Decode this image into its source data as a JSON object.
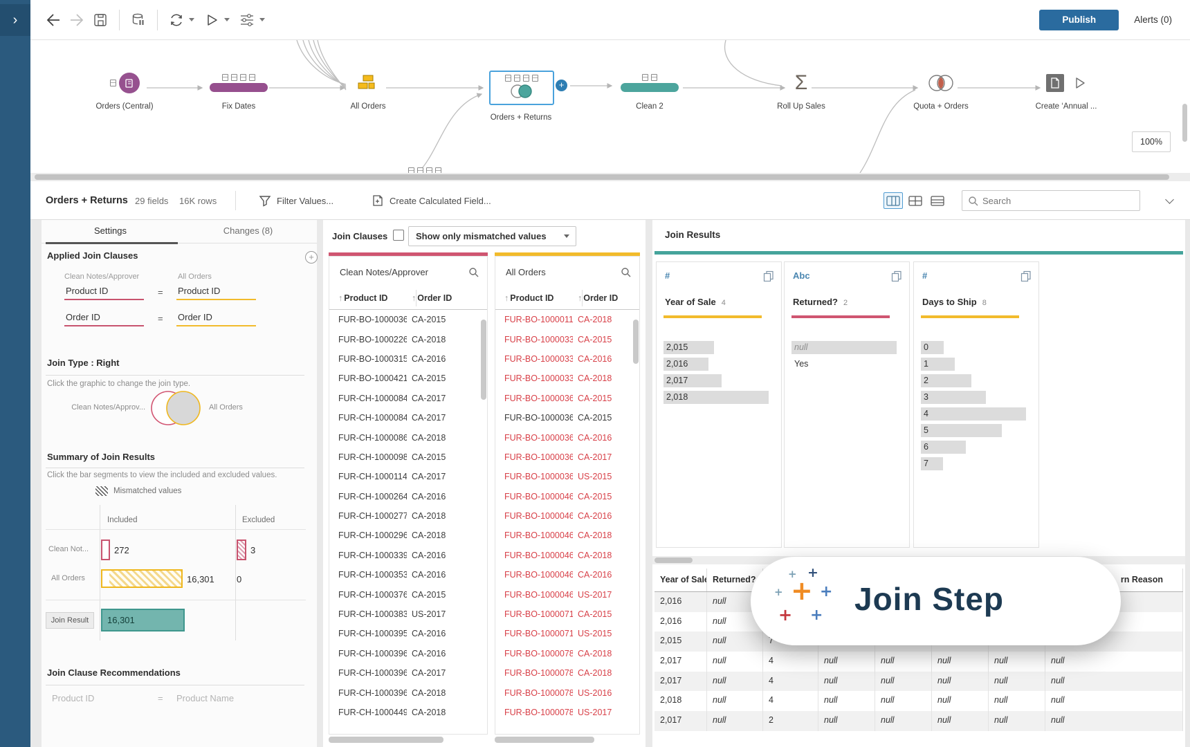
{
  "chrome": {
    "publish_label": "Publish",
    "alerts_label": "Alerts (0)",
    "zoom_level": "100%"
  },
  "flow": {
    "nodes": [
      {
        "label": "Orders (Central)"
      },
      {
        "label": "Fix Dates"
      },
      {
        "label": "All Orders"
      },
      {
        "label": "Orders + Returns"
      },
      {
        "label": "Clean 2"
      },
      {
        "label": "Roll Up Sales"
      },
      {
        "label": "Quota + Orders"
      },
      {
        "label": "Create ‘Annual ..."
      }
    ]
  },
  "profile_header": {
    "title": "Orders + Returns",
    "field_count": "29 fields",
    "row_count": "16K rows",
    "filter_values": "Filter Values...",
    "create_calc_field": "Create Calculated Field...",
    "search_placeholder": "Search"
  },
  "settings_panel": {
    "tab_settings": "Settings",
    "tab_changes": "Changes (8)",
    "applied_title": "Applied Join Clauses",
    "left_table_label": "Clean Notes/Approver",
    "right_table_label": "All Orders",
    "clauses": [
      {
        "left": "Product ID",
        "eq": "=",
        "right": "Product ID"
      },
      {
        "left": "Order ID",
        "eq": "=",
        "right": "Order ID"
      }
    ],
    "join_type_title": "Join Type : Right",
    "join_type_hint": "Click the graphic to change the join type.",
    "venn_left_label": "Clean Notes/Approv...",
    "venn_right_label": "All Orders",
    "summary_title": "Summary of Join Results",
    "summary_hint": "Click the bar segments to view the included and excluded values.",
    "legend_label": "Mismatched values",
    "col_included": "Included",
    "col_excluded": "Excluded",
    "row_clean_label": "Clean Not...",
    "row_clean_included": "272",
    "row_clean_excluded": "3",
    "row_orders_label": "All Orders",
    "row_orders_included": "16,301",
    "row_orders_excluded": "0",
    "row_result_label": "Join Result",
    "row_result_value": "16,301",
    "reco_title": "Join Clause Recommendations",
    "reco_left": "Product ID",
    "reco_eq": "=",
    "reco_right": "Product Name"
  },
  "join_clauses_panel": {
    "title": "Join Clauses",
    "dropdown_value": "Show only mismatched values",
    "clean_table": {
      "name": "Clean Notes/Approver",
      "columns": [
        "Product ID",
        "Order ID"
      ],
      "rows": [
        [
          "FUR-BO-10000362",
          "CA-2015"
        ],
        [
          "FUR-BO-10002268",
          "CA-2018"
        ],
        [
          "FUR-BO-10003159",
          "CA-2016"
        ],
        [
          "FUR-BO-10004218",
          "CA-2015"
        ],
        [
          "FUR-CH-10000847",
          "CA-2017"
        ],
        [
          "FUR-CH-10000847",
          "CA-2017"
        ],
        [
          "FUR-CH-10000863",
          "CA-2018"
        ],
        [
          "FUR-CH-10000988",
          "CA-2015"
        ],
        [
          "FUR-CH-10001146",
          "CA-2017"
        ],
        [
          "FUR-CH-10002647",
          "CA-2016"
        ],
        [
          "FUR-CH-10002774",
          "CA-2018"
        ],
        [
          "FUR-CH-10002961",
          "CA-2018"
        ],
        [
          "FUR-CH-10003396",
          "CA-2016"
        ],
        [
          "FUR-CH-10003535",
          "CA-2016"
        ],
        [
          "FUR-CH-10003761",
          "CA-2015"
        ],
        [
          "FUR-CH-10003833",
          "US-2017"
        ],
        [
          "FUR-CH-10003956",
          "CA-2016"
        ],
        [
          "FUR-CH-10003968",
          "CA-2016"
        ],
        [
          "FUR-CH-10003968",
          "CA-2017"
        ],
        [
          "FUR-CH-10003968",
          "CA-2018"
        ],
        [
          "FUR-CH-10004495",
          "CA-2018"
        ]
      ]
    },
    "orders_table": {
      "name": "All Orders",
      "columns": [
        "Product ID",
        "Order ID"
      ],
      "matched_row_index": 5,
      "rows": [
        [
          "FUR-BO-10000112",
          "CA-2018"
        ],
        [
          "FUR-BO-10000330",
          "CA-2015"
        ],
        [
          "FUR-BO-10000330",
          "CA-2016"
        ],
        [
          "FUR-BO-10000330",
          "CA-2018"
        ],
        [
          "FUR-BO-10000362",
          "CA-2015"
        ],
        [
          "FUR-BO-10000362",
          "CA-2015"
        ],
        [
          "FUR-BO-10000362",
          "CA-2016"
        ],
        [
          "FUR-BO-10000362",
          "CA-2017"
        ],
        [
          "FUR-BO-10000362",
          "US-2015"
        ],
        [
          "FUR-BO-10000468",
          "CA-2015"
        ],
        [
          "FUR-BO-10000468",
          "CA-2016"
        ],
        [
          "FUR-BO-10000468",
          "CA-2018"
        ],
        [
          "FUR-BO-10000468",
          "CA-2018"
        ],
        [
          "FUR-BO-10000468",
          "CA-2016"
        ],
        [
          "FUR-BO-10000468",
          "US-2017"
        ],
        [
          "FUR-BO-10000711",
          "CA-2015"
        ],
        [
          "FUR-BO-10000711",
          "US-2015"
        ],
        [
          "FUR-BO-10000780",
          "CA-2018"
        ],
        [
          "FUR-BO-10000780",
          "CA-2018"
        ],
        [
          "FUR-BO-10000780",
          "US-2016"
        ],
        [
          "FUR-BO-10000780",
          "US-2017"
        ]
      ]
    }
  },
  "join_results": {
    "title": "Join Results",
    "cards": [
      {
        "type_icon": "#",
        "name": "Year of Sale",
        "count": "4",
        "accent": "#f2bb2c",
        "values": [
          {
            "label": "2,015",
            "bar": 0.48
          },
          {
            "label": "2,016",
            "bar": 0.43
          },
          {
            "label": "2,017",
            "bar": 0.55
          },
          {
            "label": "2,018",
            "bar": 1.0
          }
        ]
      },
      {
        "type_icon": "Abc",
        "name": "Returned?",
        "count": "2",
        "accent": "#cf5571",
        "values": [
          {
            "label": "null",
            "bar": 1.0,
            "is_null": true
          },
          {
            "label": "Yes",
            "bar": 0
          }
        ]
      },
      {
        "type_icon": "#",
        "name": "Days to Ship",
        "count": "8",
        "accent": "#f2bb2c",
        "values": [
          {
            "label": "0",
            "bar": 0.22
          },
          {
            "label": "1",
            "bar": 0.32
          },
          {
            "label": "2",
            "bar": 0.48
          },
          {
            "label": "3",
            "bar": 0.62
          },
          {
            "label": "4",
            "bar": 1.0
          },
          {
            "label": "5",
            "bar": 0.77
          },
          {
            "label": "6",
            "bar": 0.43
          },
          {
            "label": "7",
            "bar": 0.21
          }
        ]
      }
    ],
    "grid": {
      "columns": [
        "Year of Sale",
        "Returned?",
        "",
        "",
        "",
        "",
        "",
        "rn Reason"
      ],
      "rows": [
        [
          "2,016",
          "null",
          "",
          "",
          "",
          "",
          "",
          ""
        ],
        [
          "2,016",
          "null",
          "4",
          "",
          "",
          "",
          "",
          ""
        ],
        [
          "2,015",
          "null",
          "7",
          "null",
          "null",
          "null",
          "null",
          "null"
        ],
        [
          "2,017",
          "null",
          "4",
          "null",
          "null",
          "null",
          "null",
          "null"
        ],
        [
          "2,017",
          "null",
          "4",
          "null",
          "null",
          "null",
          "null",
          "null"
        ],
        [
          "2,018",
          "null",
          "4",
          "null",
          "null",
          "null",
          "null",
          "null"
        ],
        [
          "2,017",
          "null",
          "2",
          "null",
          "null",
          "null",
          "null",
          "null"
        ]
      ]
    }
  },
  "overlay": {
    "label": "Join Step"
  }
}
